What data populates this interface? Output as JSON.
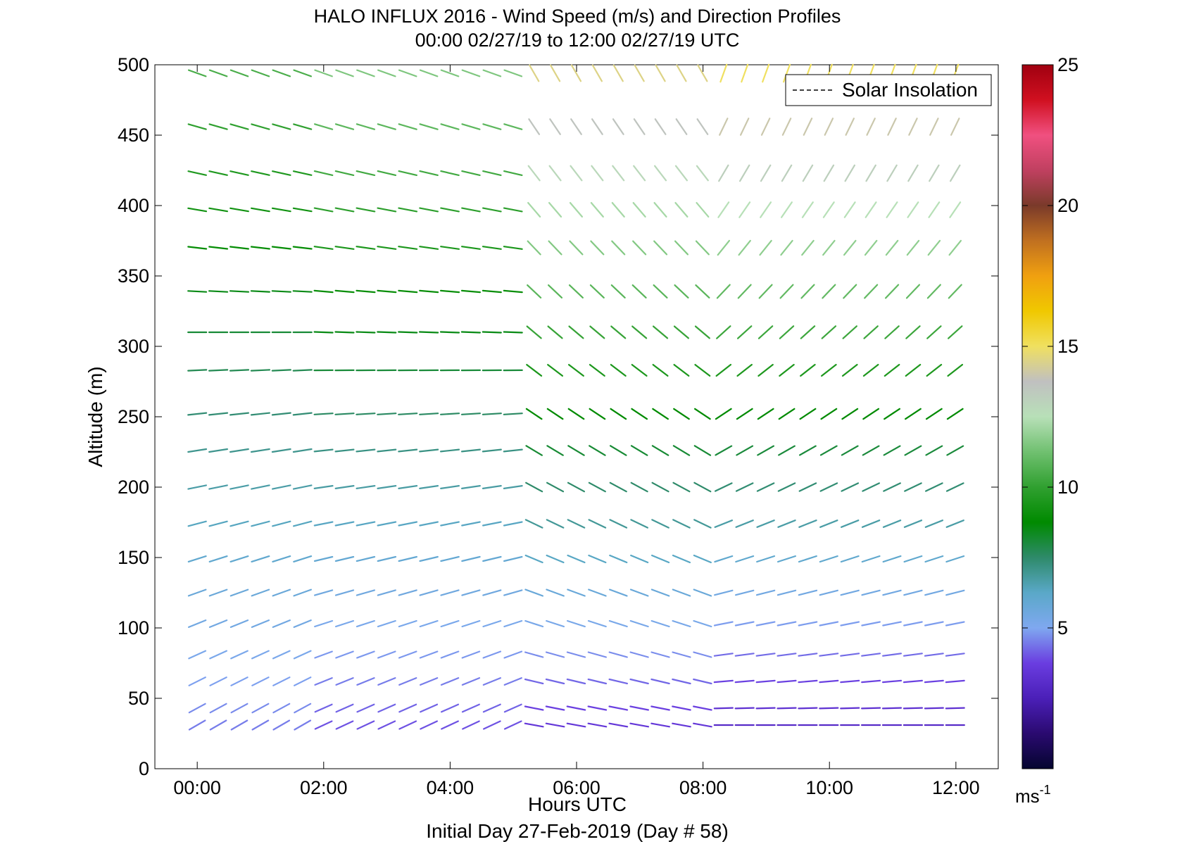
{
  "chart_data": {
    "type": "wind-barb",
    "title": "HALO INFLUX 2016 - Wind Speed (m/s) and Direction Profiles",
    "subtitle": "00:00 02/27/19 to 12:00 02/27/19  UTC",
    "xlabel": "Hours UTC",
    "xlabel2": "Initial Day 27-Feb-2019 (Day # 58)",
    "ylabel": "Altitude (m)",
    "x_ticks": [
      "00:00",
      "02:00",
      "04:00",
      "06:00",
      "08:00",
      "10:00",
      "12:00"
    ],
    "xlim_hours": [
      -0.67,
      12.67
    ],
    "y_ticks": [
      0,
      50,
      100,
      150,
      200,
      250,
      300,
      350,
      400,
      450,
      500
    ],
    "ylim": [
      0,
      500
    ],
    "legend": {
      "entries": [
        "Solar Insolation"
      ],
      "position": "top-right"
    },
    "colorbar": {
      "label": "ms-1",
      "ticks": [
        5,
        10,
        15,
        20,
        25
      ],
      "range": [
        0,
        25
      ],
      "colors": [
        "#050530",
        "#2a0a70",
        "#4b1fb8",
        "#6a3de0",
        "#7fa8f0",
        "#5aa8c8",
        "#2e8a6a",
        "#008a00",
        "#30a030",
        "#70c070",
        "#b8e0b8",
        "#c0c0c0",
        "#f0e060",
        "#f0c800",
        "#f0a010",
        "#c07020",
        "#7a3a2a",
        "#c04060",
        "#f05080",
        "#d01020",
        "#a00010"
      ]
    },
    "altitudes_m": [
      31,
      43,
      62,
      81,
      103,
      125,
      149,
      174,
      200,
      226,
      252,
      283,
      310,
      339,
      370,
      397,
      423,
      456,
      494
    ],
    "time_step_hours": 0.333,
    "time_start_hours": 0.0,
    "time_end_hours": 12.0,
    "gap_after_hours": 8.0,
    "profiles": [
      {
        "t_from": 0.0,
        "t_to": 1.67,
        "speed_low": 4.5,
        "speed_high": 10.5,
        "dir_low": 240,
        "dir_high": 290
      },
      {
        "t_from": 1.67,
        "t_to": 5.0,
        "speed_low": 4.0,
        "speed_high": 11.5,
        "dir_low": 245,
        "dir_high": 290
      },
      {
        "t_from": 5.0,
        "t_to": 8.0,
        "speed_low": 3.5,
        "speed_high": 14.5,
        "dir_low": 280,
        "dir_high": 330
      },
      {
        "t_from": 8.0,
        "t_to": 12.0,
        "speed_low": 3.0,
        "speed_high": 15.0,
        "dir_low": 270,
        "dir_high": 200
      }
    ]
  }
}
